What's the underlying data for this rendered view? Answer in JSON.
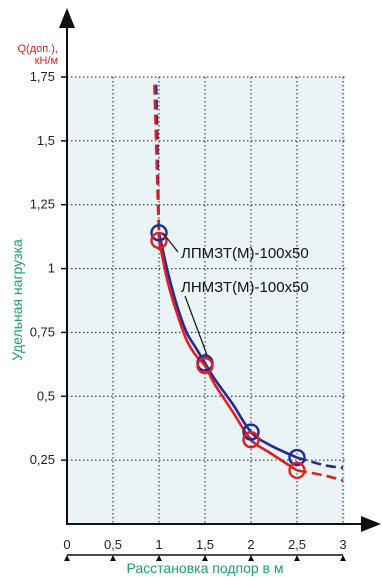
{
  "chart_data": {
    "type": "line",
    "ylabel_top": [
      "Q(доп.),",
      "кН/м"
    ],
    "ylabel": "Удельная нагрузка",
    "xlabel": "Расстановка подпор в м",
    "xlim": [
      0,
      3
    ],
    "ylim": [
      0,
      1.75
    ],
    "x_ticks": [
      "0",
      "0,5",
      "1",
      "1,5",
      "2",
      "2,5",
      "3"
    ],
    "y_ticks": [
      "0,25",
      "0,5",
      "0,75",
      "1",
      "1,25",
      "1,5",
      "1,75"
    ],
    "grid": true,
    "colors": {
      "blue": "#24299a",
      "red": "#e0201e",
      "plot_bg": "#eaf4f6"
    },
    "series": [
      {
        "name": "ЛПМЗТ(М)-100х50",
        "color": "#24299a",
        "x": [
          0.97,
          1.0,
          1.1,
          1.2,
          1.3,
          1.4,
          1.5,
          1.6,
          1.8,
          2.0,
          2.2,
          2.5,
          2.8,
          3.0
        ],
        "y": [
          1.72,
          1.14,
          0.98,
          0.85,
          0.75,
          0.69,
          0.63,
          0.57,
          0.47,
          0.36,
          0.31,
          0.26,
          0.23,
          0.22
        ],
        "markers": [
          [
            1.0,
            1.14
          ],
          [
            1.5,
            0.63
          ],
          [
            2.0,
            0.36
          ],
          [
            2.5,
            0.26
          ]
        ]
      },
      {
        "name": "ЛНМЗТ(М)-100х50",
        "color": "#e0201e",
        "x": [
          0.95,
          1.0,
          1.1,
          1.2,
          1.3,
          1.4,
          1.5,
          1.6,
          1.8,
          2.0,
          2.2,
          2.5,
          2.8,
          3.0
        ],
        "y": [
          1.72,
          1.11,
          0.94,
          0.82,
          0.72,
          0.66,
          0.62,
          0.55,
          0.44,
          0.33,
          0.28,
          0.21,
          0.19,
          0.17
        ],
        "markers": [
          [
            1.0,
            1.11
          ],
          [
            1.5,
            0.62
          ],
          [
            2.0,
            0.33
          ],
          [
            2.5,
            0.21
          ]
        ]
      }
    ],
    "annotations": [
      {
        "text": "ЛПМЗТ(М)-100х50",
        "target": [
          1.0,
          1.14
        ]
      },
      {
        "text": "ЛНМЗТ(М)-100х50",
        "target": [
          1.5,
          0.63
        ]
      }
    ]
  }
}
